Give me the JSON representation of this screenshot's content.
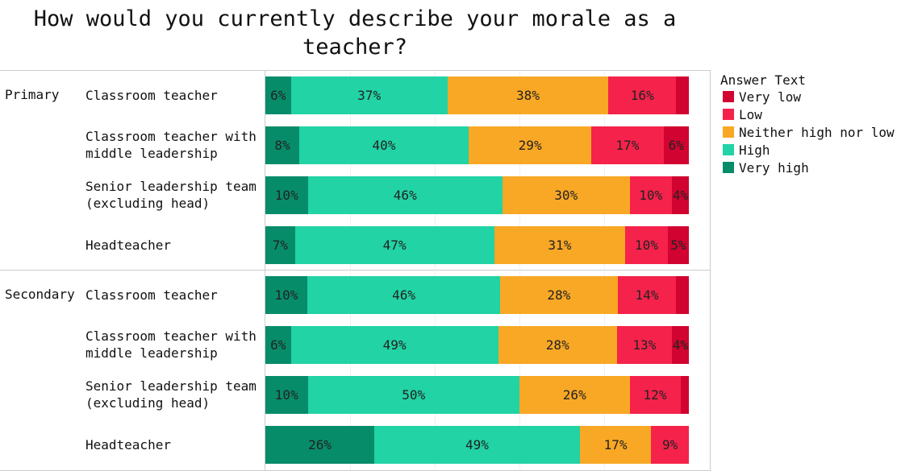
{
  "chart_data": {
    "type": "bar",
    "orientation": "horizontal-stacked-100",
    "title": "How would you currently describe your morale as a teacher?",
    "legend_title": "Answer Text",
    "legend_placement": "right",
    "series_order": [
      "Very high",
      "High",
      "Neither high nor low",
      "Low",
      "Very low"
    ],
    "legend": [
      "Very low",
      "Low",
      "Neither high nor low",
      "High",
      "Very high"
    ],
    "colors": {
      "Very low": "#d10330",
      "Low": "#f5224b",
      "Neither high nor low": "#f9a825",
      "High": "#21d3a5",
      "Very high": "#078c6a"
    },
    "groups": [
      "Primary",
      "Secondary"
    ],
    "rows": [
      {
        "group": "Primary",
        "label": "Classroom teacher",
        "values": [
          6,
          37,
          38,
          16,
          3
        ],
        "labels": [
          "6%",
          "37%",
          "38%",
          "16%",
          ""
        ]
      },
      {
        "group": "Primary",
        "label": "Classroom teacher with middle leadership",
        "values": [
          8,
          40,
          29,
          17,
          6
        ],
        "labels": [
          "8%",
          "40%",
          "29%",
          "17%",
          "6%"
        ]
      },
      {
        "group": "Primary",
        "label": "Senior leadership team (excluding head)",
        "values": [
          10,
          46,
          30,
          10,
          4
        ],
        "labels": [
          "10%",
          "46%",
          "30%",
          "10%",
          "4%"
        ]
      },
      {
        "group": "Primary",
        "label": "Headteacher",
        "values": [
          7,
          47,
          31,
          10,
          5
        ],
        "labels": [
          "7%",
          "47%",
          "31%",
          "10%",
          "5%"
        ]
      },
      {
        "group": "Secondary",
        "label": "Classroom teacher",
        "values": [
          10,
          46,
          28,
          14,
          3
        ],
        "labels": [
          "10%",
          "46%",
          "28%",
          "14%",
          ""
        ]
      },
      {
        "group": "Secondary",
        "label": "Classroom teacher with middle leadership",
        "values": [
          6,
          49,
          28,
          13,
          4
        ],
        "labels": [
          "6%",
          "49%",
          "28%",
          "13%",
          "4%"
        ]
      },
      {
        "group": "Secondary",
        "label": "Senior leadership team (excluding head)",
        "values": [
          10,
          50,
          26,
          12,
          2
        ],
        "labels": [
          "10%",
          "50%",
          "26%",
          "12%",
          ""
        ]
      },
      {
        "group": "Secondary",
        "label": "Headteacher",
        "values": [
          26,
          49,
          17,
          9,
          0
        ],
        "labels": [
          "26%",
          "49%",
          "17%",
          "9%",
          ""
        ]
      }
    ],
    "xlim": [
      0,
      100
    ],
    "grid": true
  }
}
